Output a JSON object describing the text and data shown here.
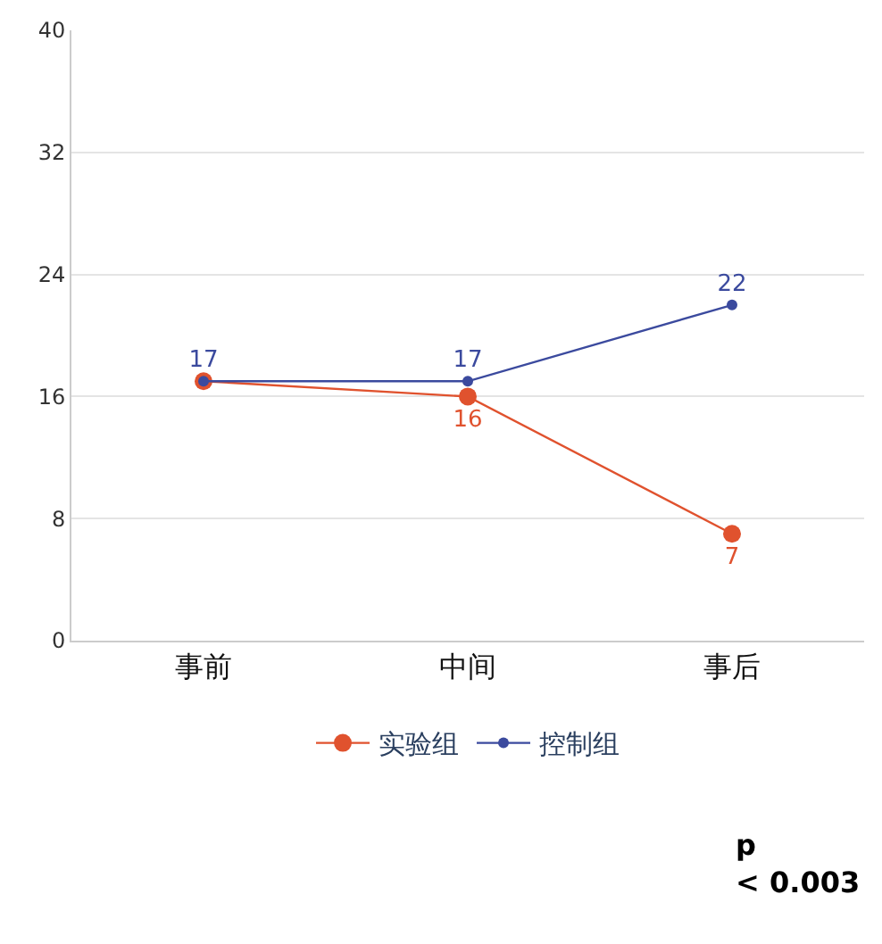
{
  "chart_data": {
    "type": "line",
    "categories": [
      "事前",
      "中间",
      "事后"
    ],
    "series": [
      {
        "name": "实验组",
        "color": "#e0522e",
        "values": [
          17,
          16,
          7
        ],
        "value_labels": [
          null,
          "16",
          "7"
        ]
      },
      {
        "name": "控制组",
        "color": "#3b4a9e",
        "values": [
          17,
          17,
          22
        ],
        "value_labels": [
          "17",
          "17",
          "22"
        ]
      }
    ],
    "ylim": [
      0,
      40
    ],
    "yticks": [
      0,
      8,
      16,
      24,
      32,
      40
    ],
    "grid": "y",
    "legend": "bottom",
    "marker": "circle",
    "line_style": "solid",
    "annotations": [
      "p < 0.003"
    ]
  }
}
